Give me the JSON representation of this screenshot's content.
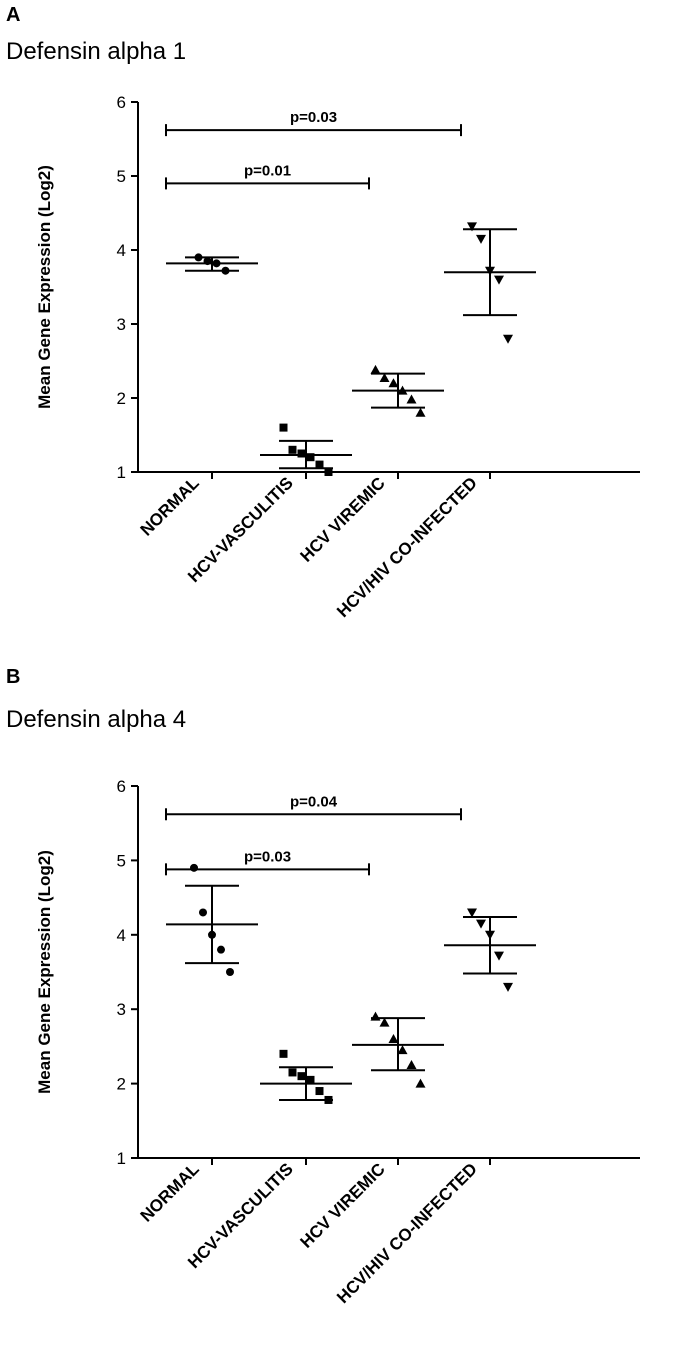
{
  "panels": [
    {
      "letter": "A",
      "title": "Defensin alpha 1"
    },
    {
      "letter": "B",
      "title": "Defensin alpha 4"
    }
  ],
  "chart_data": [
    {
      "type": "scatter",
      "title": "Defensin alpha 1",
      "xlabel": "",
      "ylabel": "Mean Gene Expression (Log2)",
      "ylim": [
        1,
        6
      ],
      "yticks": [
        1,
        2,
        3,
        4,
        5,
        6
      ],
      "categories": [
        "NORMAL",
        "HCV-VASCULITIS",
        "HCV VIREMIC",
        "HCV/HIV CO-INFECTED"
      ],
      "markers": [
        "circle",
        "square",
        "triangle-up",
        "triangle-down"
      ],
      "points": [
        [
          3.9,
          3.85,
          3.82,
          3.72
        ],
        [
          1.6,
          1.3,
          1.25,
          1.2,
          1.1,
          1.0
        ],
        [
          2.38,
          2.27,
          2.2,
          2.1,
          1.98,
          1.8
        ],
        [
          4.32,
          4.15,
          3.72,
          3.6,
          2.8
        ]
      ],
      "mean": [
        3.82,
        1.23,
        2.1,
        3.7
      ],
      "err_low": [
        3.72,
        1.05,
        1.87,
        3.12
      ],
      "err_high": [
        3.9,
        1.42,
        2.33,
        4.28
      ],
      "significance": [
        {
          "from": 0,
          "to": 1,
          "y": 4.9,
          "label": "p=0.01"
        },
        {
          "from": 0,
          "to": 2,
          "y": 5.62,
          "label": "p=0.03"
        }
      ]
    },
    {
      "type": "scatter",
      "title": "Defensin alpha 4",
      "xlabel": "",
      "ylabel": "Mean Gene Expression (Log2)",
      "ylim": [
        1,
        6
      ],
      "yticks": [
        1,
        2,
        3,
        4,
        5,
        6
      ],
      "categories": [
        "NORMAL",
        "HCV-VASCULITIS",
        "HCV VIREMIC",
        "HCV/HIV CO-INFECTED"
      ],
      "markers": [
        "circle",
        "square",
        "triangle-up",
        "triangle-down"
      ],
      "points": [
        [
          4.9,
          4.3,
          4.0,
          3.8,
          3.5
        ],
        [
          2.4,
          2.15,
          2.1,
          2.05,
          1.9,
          1.78
        ],
        [
          2.9,
          2.82,
          2.6,
          2.45,
          2.25,
          2.0
        ],
        [
          4.3,
          4.15,
          4.0,
          3.72,
          3.3
        ]
      ],
      "mean": [
        4.14,
        2.0,
        2.52,
        3.86
      ],
      "err_low": [
        3.62,
        1.78,
        2.18,
        3.48
      ],
      "err_high": [
        4.66,
        2.22,
        2.88,
        4.24
      ],
      "significance": [
        {
          "from": 0,
          "to": 1,
          "y": 4.88,
          "label": "p=0.03"
        },
        {
          "from": 0,
          "to": 2,
          "y": 5.62,
          "label": "p=0.04"
        }
      ]
    }
  ]
}
